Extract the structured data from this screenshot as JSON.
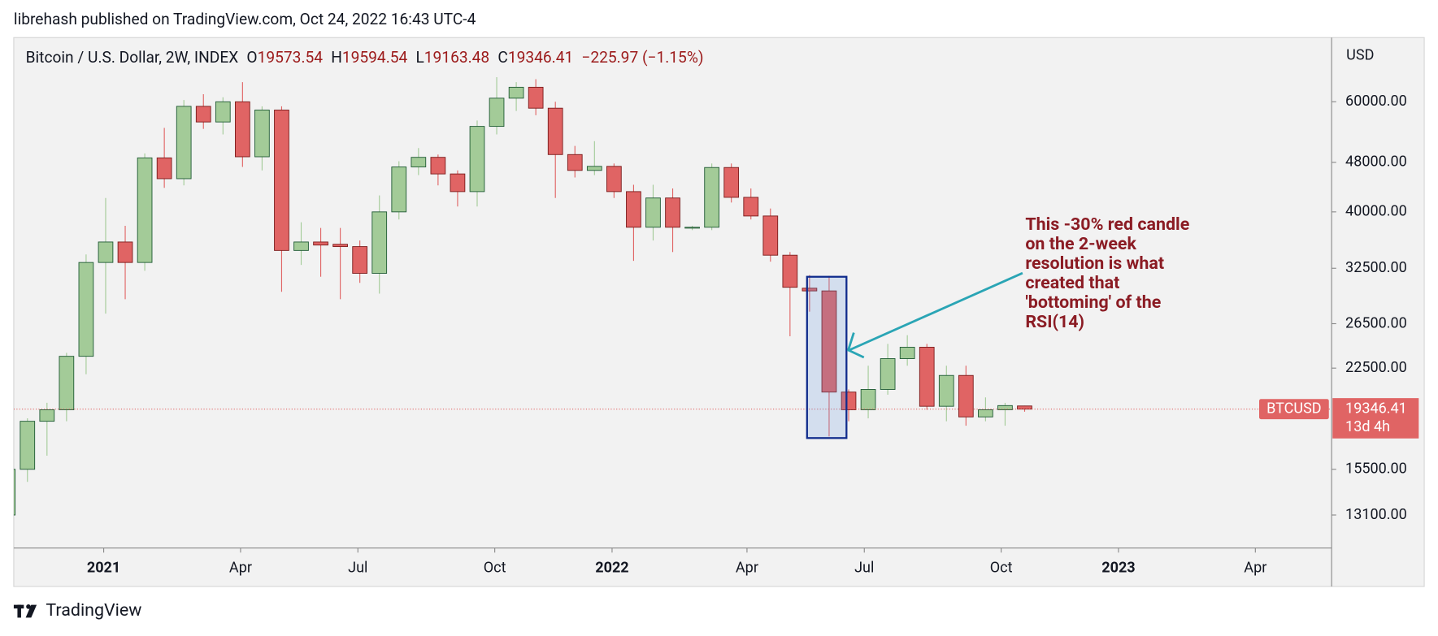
{
  "header": "librehash published on TradingView.com, Oct 24, 2022 16:43 UTC-4",
  "footer": "TradingView",
  "chart_data": {
    "type": "candlestick",
    "legend": {
      "title": "Bitcoin / U.S. Dollar, 2W, INDEX",
      "ohlc_letters": [
        "O",
        "H",
        "L",
        "C"
      ],
      "change": "−225.97 (−1.15%)"
    },
    "y_axis_label": "USD",
    "symbol": "BTCUSD",
    "countdown": "13d 4h",
    "annotation": [
      "This -30% red candle",
      "on the 2-week",
      "resolution is what",
      "created that",
      "'bottoming' of the",
      "RSI(14)"
    ],
    "up_color": "#a3cb98",
    "down_color": "#e06464",
    "annotation_color": "#8b1c24",
    "log_y": true,
    "categories": [
      null,
      null,
      null,
      null,
      null,
      null,
      null,
      null,
      null,
      null,
      null,
      null,
      null,
      null,
      null,
      null,
      null,
      null,
      null,
      null,
      null,
      null,
      null,
      null,
      null,
      null,
      null,
      null,
      null,
      null,
      null,
      null,
      null,
      null,
      null,
      null,
      null,
      null,
      null,
      null,
      null,
      null,
      null,
      null,
      null,
      null,
      null,
      null,
      null,
      null,
      null,
      null,
      null
    ],
    "open": [
      13100,
      15500,
      18500,
      19300,
      23500,
      33200,
      35800,
      33200,
      48800,
      45200,
      59000,
      55700,
      60000,
      49000,
      58200,
      34700,
      35800,
      35500,
      35200,
      31900,
      40000,
      47200,
      48900,
      46000,
      43100,
      54800,
      60800,
      63300,
      58600,
      49400,
      46600,
      47300,
      43100,
      37800,
      42100,
      37700,
      37800,
      47100,
      42200,
      39400,
      34100,
      30200,
      29900,
      20600,
      19300,
      20800,
      23300,
      24300,
      19550,
      21900,
      18800,
      19300,
      19573.54
    ],
    "high": [
      15900,
      18700,
      19800,
      23800,
      34200,
      42100,
      38000,
      49600,
      54500,
      60400,
      61700,
      61000,
      64500,
      59000,
      59000,
      38500,
      37700,
      37700,
      36000,
      42500,
      48200,
      50600,
      49400,
      46600,
      56000,
      65700,
      64500,
      65200,
      60000,
      51000,
      51900,
      47800,
      44200,
      44200,
      43600,
      38000,
      47800,
      47800,
      43600,
      40500,
      34500,
      31700,
      31600,
      20800,
      22700,
      24600,
      25400,
      24600,
      22700,
      22700,
      20200,
      19800,
      19594.54
    ],
    "low": [
      13000,
      14800,
      16300,
      18500,
      22000,
      27500,
      29000,
      32200,
      43700,
      44100,
      54300,
      53200,
      47200,
      46600,
      29800,
      32900,
      31500,
      29000,
      30800,
      29600,
      38900,
      45800,
      44100,
      40800,
      40800,
      53200,
      58000,
      57100,
      42100,
      45400,
      45800,
      42100,
      33400,
      36000,
      34500,
      37400,
      37400,
      41400,
      38900,
      33300,
      25300,
      27700,
      17500,
      18500,
      18700,
      20400,
      22700,
      19300,
      18500,
      18200,
      18500,
      18200,
      19163.48
    ],
    "close": [
      15500,
      18500,
      19300,
      23500,
      33200,
      35800,
      33200,
      48800,
      45200,
      59000,
      55700,
      60000,
      49000,
      58200,
      34700,
      35800,
      35400,
      35200,
      31900,
      40000,
      47200,
      48900,
      46000,
      43100,
      54800,
      60800,
      63300,
      58600,
      49400,
      46600,
      47300,
      43100,
      37800,
      42100,
      37800,
      37800,
      47100,
      42200,
      39400,
      34100,
      30300,
      29900,
      20600,
      19300,
      20800,
      23300,
      24300,
      19550,
      21900,
      18800,
      19300,
      19600,
      19346.41
    ],
    "ylim": [
      11600,
      76000
    ],
    "yticks": [
      {
        "value": 13100,
        "label": "13100.00"
      },
      {
        "value": 15500,
        "label": "15500.00"
      },
      {
        "value": 22500,
        "label": "22500.00"
      },
      {
        "value": 26500,
        "label": "26500.00"
      },
      {
        "value": 32500,
        "label": "32500.00"
      },
      {
        "value": 40000,
        "label": "40000.00"
      },
      {
        "value": 48000,
        "label": "48000.00"
      },
      {
        "value": 60000,
        "label": "60000.00"
      }
    ],
    "xlim": [
      0.3,
      67.7
    ],
    "xticks": [
      {
        "value": 4.9,
        "label": "2021"
      },
      {
        "value": 11.9,
        "label": "Apr"
      },
      {
        "value": 17.9,
        "label": "Jul"
      },
      {
        "value": 24.9,
        "label": "Oct"
      },
      {
        "value": 30.9,
        "label": "2022"
      },
      {
        "value": 37.8,
        "label": "Apr"
      },
      {
        "value": 43.8,
        "label": "Jul"
      },
      {
        "value": 50.8,
        "label": "Oct"
      },
      {
        "value": 56.8,
        "label": "2023"
      },
      {
        "value": 63.8,
        "label": "Apr"
      }
    ]
  }
}
